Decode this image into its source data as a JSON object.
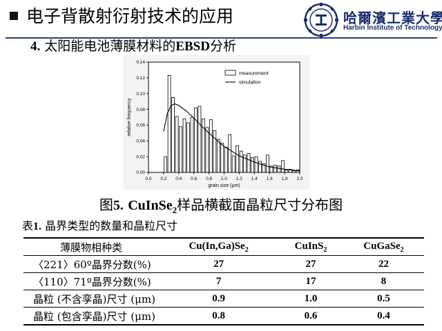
{
  "header": {
    "title": "电子背散射衍射技术的应用",
    "logo_name_cn": "哈爾濱工業大學",
    "logo_name_en": "Harbin Institute of Technology"
  },
  "section": {
    "prefix": "4.",
    "text_before": "太阳能电池薄膜材料的",
    "text_latin": "EBSD",
    "text_after": "分析"
  },
  "figure_caption": {
    "prefix": "图",
    "label": "5.",
    "formula_main": "CuInSe",
    "formula_sub": "2",
    "text": "样品横截面晶粒尺寸分布图"
  },
  "chart_data": {
    "type": "bar",
    "xlabel": "grain size (μm)",
    "ylabel": "relative frequency",
    "xlim": [
      0.0,
      2.0
    ],
    "ylim": [
      0.0,
      0.14
    ],
    "xticks": [
      "0.0",
      "0.2",
      "0.4",
      "0.6",
      "0.8",
      "1.0",
      "1.2",
      "1.4",
      "1.6",
      "1.8",
      "2.0"
    ],
    "yticks": [
      "0.00",
      "0.02",
      "0.04",
      "0.06",
      "0.08",
      "0.10",
      "0.12",
      "0.14"
    ],
    "legend": [
      "measurement",
      "simulation"
    ],
    "legend_position": "top-right",
    "series": [
      {
        "name": "measurement",
        "type": "bar",
        "x": [
          0.2,
          0.25,
          0.3,
          0.35,
          0.4,
          0.45,
          0.5,
          0.55,
          0.6,
          0.65,
          0.7,
          0.75,
          0.8,
          0.85,
          0.9,
          0.95,
          1.0,
          1.05,
          1.1,
          1.15,
          1.2,
          1.25,
          1.3,
          1.35,
          1.4,
          1.45,
          1.5,
          1.55,
          1.6,
          1.65,
          1.7,
          1.75,
          1.8,
          1.85,
          1.9,
          1.95
        ],
        "values": [
          0.02,
          0.123,
          0.095,
          0.071,
          0.058,
          0.068,
          0.063,
          0.07,
          0.082,
          0.084,
          0.068,
          0.057,
          0.067,
          0.053,
          0.042,
          0.037,
          0.032,
          0.048,
          0.021,
          0.034,
          0.027,
          0.022,
          0.024,
          0.019,
          0.02,
          0.014,
          0.011,
          0.022,
          0.008,
          0.009,
          0.008,
          0.015,
          0.003,
          0.004,
          0.002,
          0.003
        ]
      },
      {
        "name": "simulation",
        "type": "line",
        "x": [
          0.2,
          0.25,
          0.3,
          0.35,
          0.4,
          0.5,
          0.6,
          0.7,
          0.8,
          0.9,
          1.0,
          1.2,
          1.4,
          1.6,
          1.8,
          2.0
        ],
        "values": [
          0.052,
          0.075,
          0.085,
          0.087,
          0.085,
          0.078,
          0.069,
          0.059,
          0.05,
          0.041,
          0.033,
          0.021,
          0.013,
          0.007,
          0.004,
          0.002
        ]
      }
    ]
  },
  "table": {
    "title_prefix": "表",
    "title_label": "1.",
    "title_text": "晶界类型的数量和晶粒尺寸",
    "header": {
      "col0": "薄膜物相种类",
      "col1_main": "Cu(In,Ga)Se",
      "col1_sub": "2",
      "col2_main": "CuInS",
      "col2_sub": "2",
      "col3_main": "CuGaSe",
      "col3_sub": "2"
    },
    "rows": [
      {
        "label": "〈221〉60º晶界分数(%)",
        "values": [
          "27",
          "27",
          "22"
        ]
      },
      {
        "label": "〈110〉71º晶界分数(%)",
        "values": [
          "7",
          "17",
          "8"
        ]
      },
      {
        "label": "晶粒 (不含孪晶)尺寸 (μm)",
        "values": [
          "0.9",
          "1.0",
          "0.5"
        ]
      },
      {
        "label": "晶粒 (包含孪晶)尺寸 (μm)",
        "values": [
          "0.8",
          "0.6",
          "0.4"
        ]
      }
    ]
  },
  "colors": {
    "accent": "#2a3b7a",
    "bar_fill": "#ffffff",
    "bar_stroke": "#000000"
  }
}
